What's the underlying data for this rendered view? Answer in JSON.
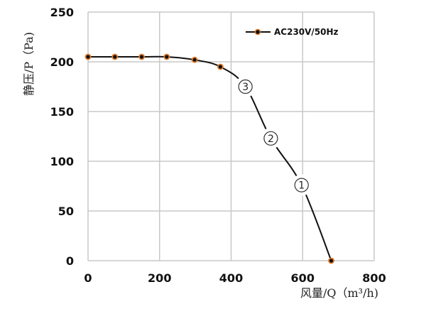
{
  "chart_data": {
    "type": "line",
    "xlabel": "风量/Q（m³/h)",
    "ylabel": "静压/P（Pa)",
    "xlim": [
      0,
      800
    ],
    "ylim": [
      0,
      250
    ],
    "xticks": [
      "0",
      "200",
      "400",
      "600",
      "800"
    ],
    "yticks": [
      "0",
      "50",
      "100",
      "150",
      "200",
      "250"
    ],
    "grid": true,
    "legend_position": "top-right",
    "series": [
      {
        "name": "AC230V/50Hz",
        "color": "#111111",
        "marker_color": "#e07b2a",
        "markers": [
          [
            0,
            205
          ],
          [
            75,
            205
          ],
          [
            150,
            205
          ],
          [
            220,
            205
          ],
          [
            298,
            202
          ],
          [
            370,
            195
          ],
          [
            680,
            0
          ]
        ],
        "curve": [
          [
            0,
            205
          ],
          [
            75,
            205
          ],
          [
            150,
            205
          ],
          [
            220,
            205
          ],
          [
            298,
            202
          ],
          [
            370,
            195
          ],
          [
            440,
            175
          ],
          [
            511,
            123
          ],
          [
            597,
            76
          ],
          [
            680,
            0
          ]
        ]
      }
    ],
    "annotations": [
      {
        "text": "③",
        "x": 440,
        "y": 175
      },
      {
        "text": "②",
        "x": 511,
        "y": 123
      },
      {
        "text": "①",
        "x": 597,
        "y": 76
      }
    ]
  }
}
